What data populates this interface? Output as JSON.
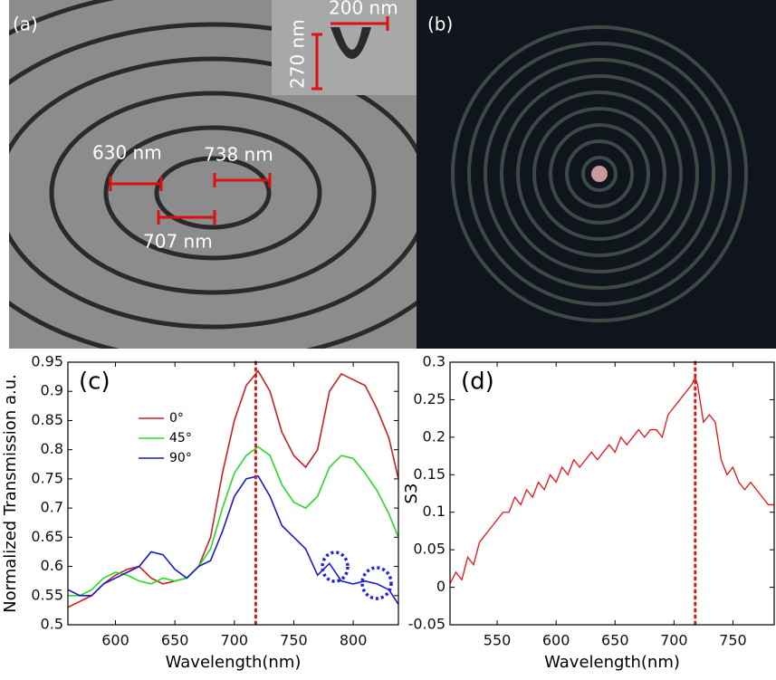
{
  "panels": {
    "a": {
      "label": "(a)",
      "annotations": [
        "630 nm",
        "738 nm",
        "707 nm",
        "200 nm",
        "270 nm"
      ]
    },
    "b": {
      "label": "(b)"
    }
  },
  "chart_data": [
    {
      "type": "line",
      "panel_label": "(c)",
      "x_label": "Wavelength(nm)",
      "y_label": "Normalized Transmission a.u.",
      "x": [
        560,
        570,
        580,
        590,
        600,
        610,
        620,
        630,
        640,
        650,
        660,
        670,
        680,
        690,
        700,
        710,
        720,
        730,
        740,
        750,
        760,
        770,
        780,
        790,
        800,
        810,
        820,
        830,
        838
      ],
      "series": [
        {
          "name": "0°",
          "color": "#cc2020",
          "values": [
            0.53,
            0.54,
            0.55,
            0.57,
            0.585,
            0.595,
            0.6,
            0.58,
            0.57,
            0.575,
            0.58,
            0.6,
            0.65,
            0.76,
            0.85,
            0.91,
            0.935,
            0.9,
            0.83,
            0.79,
            0.77,
            0.8,
            0.9,
            0.93,
            0.92,
            0.91,
            0.87,
            0.82,
            0.75
          ]
        },
        {
          "name": "45°",
          "color": "#22dd22",
          "values": [
            0.55,
            0.55,
            0.56,
            0.58,
            0.59,
            0.585,
            0.575,
            0.57,
            0.58,
            0.575,
            0.58,
            0.6,
            0.63,
            0.7,
            0.76,
            0.79,
            0.805,
            0.79,
            0.74,
            0.71,
            0.7,
            0.72,
            0.77,
            0.79,
            0.785,
            0.76,
            0.73,
            0.69,
            0.65
          ]
        },
        {
          "name": "90°",
          "color": "#1a1acc",
          "values": [
            0.56,
            0.55,
            0.55,
            0.57,
            0.58,
            0.59,
            0.6,
            0.625,
            0.62,
            0.595,
            0.58,
            0.6,
            0.61,
            0.66,
            0.72,
            0.75,
            0.755,
            0.72,
            0.67,
            0.65,
            0.63,
            0.585,
            0.605,
            0.575,
            0.57,
            0.575,
            0.57,
            0.56,
            0.535
          ]
        }
      ],
      "xlim": [
        560,
        838
      ],
      "ylim": [
        0.5,
        0.95
      ],
      "xticks": [
        600,
        650,
        700,
        750,
        800
      ],
      "yticks": [
        0.5,
        0.55,
        0.6,
        0.65,
        0.7,
        0.75,
        0.8,
        0.85,
        0.9,
        0.95
      ],
      "vline": 718,
      "vline_color": "#cc2020",
      "legend": "left"
    },
    {
      "type": "line",
      "panel_label": "(d)",
      "x_label": "Wavelength(nm)",
      "y_label": "S3",
      "x": [
        510,
        515,
        520,
        525,
        530,
        535,
        540,
        545,
        550,
        555,
        560,
        565,
        570,
        575,
        580,
        585,
        590,
        595,
        600,
        605,
        610,
        615,
        620,
        625,
        630,
        635,
        640,
        645,
        650,
        655,
        660,
        665,
        670,
        675,
        680,
        685,
        690,
        695,
        700,
        705,
        710,
        715,
        718,
        720,
        725,
        730,
        735,
        740,
        745,
        750,
        755,
        760,
        765,
        770,
        775,
        780,
        785
      ],
      "values": [
        0.005,
        0.02,
        0.01,
        0.04,
        0.03,
        0.06,
        0.07,
        0.08,
        0.09,
        0.1,
        0.1,
        0.12,
        0.11,
        0.13,
        0.12,
        0.14,
        0.13,
        0.15,
        0.14,
        0.16,
        0.15,
        0.17,
        0.16,
        0.17,
        0.18,
        0.17,
        0.18,
        0.19,
        0.18,
        0.2,
        0.19,
        0.2,
        0.21,
        0.2,
        0.21,
        0.21,
        0.2,
        0.23,
        0.24,
        0.25,
        0.26,
        0.27,
        0.28,
        0.27,
        0.22,
        0.23,
        0.22,
        0.17,
        0.15,
        0.16,
        0.14,
        0.13,
        0.14,
        0.13,
        0.12,
        0.11,
        0.11
      ],
      "color": "#ee1111",
      "xlim": [
        510,
        785
      ],
      "ylim": [
        -0.05,
        0.3
      ],
      "xticks": [
        550,
        600,
        650,
        700,
        750
      ],
      "yticks": [
        -0.05,
        0,
        0.05,
        0.1,
        0.15,
        0.2,
        0.25,
        0.3
      ],
      "vline": 718,
      "vline_color": "#cc2020"
    }
  ]
}
